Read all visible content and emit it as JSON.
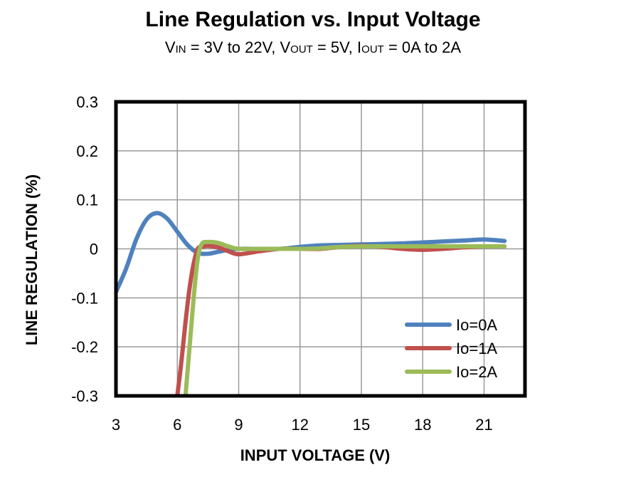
{
  "chart_data": {
    "type": "line",
    "title": "Line Regulation vs. Input Voltage",
    "subtitle": {
      "v_prefix": "V",
      "v_in_sub": "IN",
      "vin_text": " = 3V to 22V, V",
      "v_out_sub": "OUT",
      "vout_text": " = 5V, I",
      "i_out_sub": "OUT",
      "iout_text": " = 0A to 2A"
    },
    "xlabel": "INPUT VOLTAGE  (V)",
    "ylabel": "LINE REGULATION  (%)",
    "xlim": [
      3,
      23
    ],
    "ylim": [
      -0.3,
      0.3
    ],
    "x_ticks": [
      3,
      6,
      9,
      12,
      15,
      18,
      21
    ],
    "x_tick_labels": [
      "3",
      "6",
      "9",
      "12",
      "15",
      "18",
      "21"
    ],
    "y_ticks": [
      -0.3,
      -0.2,
      -0.1,
      0,
      0.1,
      0.2,
      0.3
    ],
    "y_tick_labels": [
      "-0.3",
      "-0.2",
      "-0.1",
      "0",
      "0.1",
      "0.2",
      "0.3"
    ],
    "grid": true,
    "legend_position": "bottom-right",
    "series": [
      {
        "name": "Io=0A",
        "color": "#4F81BD",
        "x": [
          3,
          3.5,
          4,
          4.5,
          5,
          5.5,
          6,
          6.5,
          7,
          7.5,
          8,
          8.5,
          9,
          10,
          11,
          12,
          13,
          14,
          15,
          16,
          17,
          18,
          19,
          20,
          21,
          22
        ],
        "y": [
          -0.088,
          -0.04,
          0.02,
          0.06,
          0.073,
          0.062,
          0.035,
          0.008,
          -0.008,
          -0.01,
          -0.006,
          -0.002,
          0.0,
          0.0,
          0.0,
          0.004,
          0.007,
          0.008,
          0.009,
          0.01,
          0.011,
          0.013,
          0.015,
          0.017,
          0.019,
          0.016
        ]
      },
      {
        "name": "Io=1A",
        "color": "#C0504D",
        "x": [
          6.0,
          6.2,
          6.4,
          6.6,
          6.8,
          7.0,
          7.2,
          7.5,
          8.0,
          8.5,
          9.0,
          10.0,
          11,
          12,
          13,
          14,
          15,
          16,
          17,
          18,
          19,
          20,
          21,
          22
        ],
        "y": [
          -0.3,
          -0.23,
          -0.15,
          -0.08,
          -0.03,
          0.0,
          0.004,
          0.006,
          0.003,
          -0.005,
          -0.011,
          -0.005,
          0.0,
          0.0,
          0.0,
          0.004,
          0.006,
          0.004,
          0.0,
          -0.002,
          0.0,
          0.003,
          0.005,
          0.005
        ]
      },
      {
        "name": "Io=2A",
        "color": "#9BBB59",
        "x": [
          6.4,
          6.6,
          6.8,
          7.0,
          7.2,
          7.5,
          8.0,
          8.5,
          9.0,
          10.0,
          11,
          12,
          13,
          14,
          15,
          16,
          17,
          18,
          19,
          20,
          21,
          22
        ],
        "y": [
          -0.3,
          -0.2,
          -0.1,
          -0.02,
          0.01,
          0.014,
          0.012,
          0.005,
          0.0,
          0.0,
          0.0,
          0.0,
          0.001,
          0.004,
          0.005,
          0.005,
          0.005,
          0.005,
          0.005,
          0.005,
          0.005,
          0.005
        ]
      }
    ]
  }
}
